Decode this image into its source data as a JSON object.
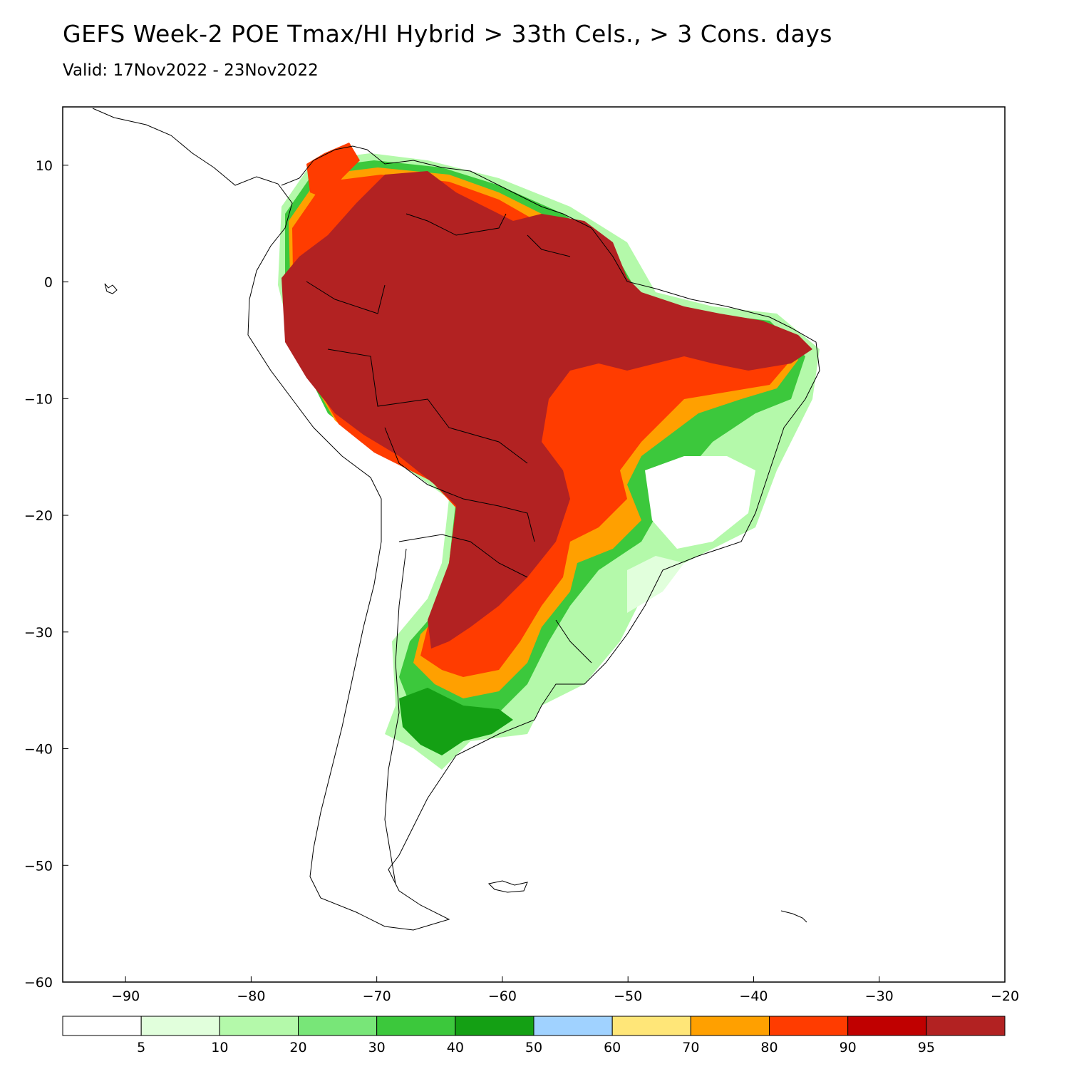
{
  "header": {
    "title": "GEFS Week-2 POE Tmax/HI Hybrid > 33th Cels., > 3 Cons. days",
    "subtitle": "Valid: 17Nov2022 - 23Nov2022"
  },
  "map": {
    "lon_range": [
      -95,
      -20
    ],
    "lat_range": [
      -60,
      15
    ],
    "x_ticks": [
      -90,
      -80,
      -70,
      -60,
      -50,
      -40,
      -30,
      -20
    ],
    "x_tick_labels": [
      "-90",
      "-80",
      "-70",
      "-60",
      "-50",
      "-40",
      "-30",
      "-20"
    ],
    "y_ticks": [
      10,
      0,
      -10,
      -20,
      -30,
      -40,
      -50,
      -60
    ],
    "y_tick_labels": [
      "10",
      "0",
      "-10",
      "-20",
      "-30",
      "-40",
      "-50",
      "-60"
    ]
  },
  "legend": {
    "colors": [
      "#ffffff",
      "#e1ffdc",
      "#b4f9aa",
      "#78e678",
      "#3cc83c",
      "#14a014",
      "#a0d2ff",
      "#ffe678",
      "#ffa000",
      "#ff3c00",
      "#c00000",
      "#b22222"
    ],
    "labels": [
      "5",
      "10",
      "20",
      "30",
      "40",
      "50",
      "60",
      "70",
      "80",
      "90",
      "95"
    ]
  }
}
